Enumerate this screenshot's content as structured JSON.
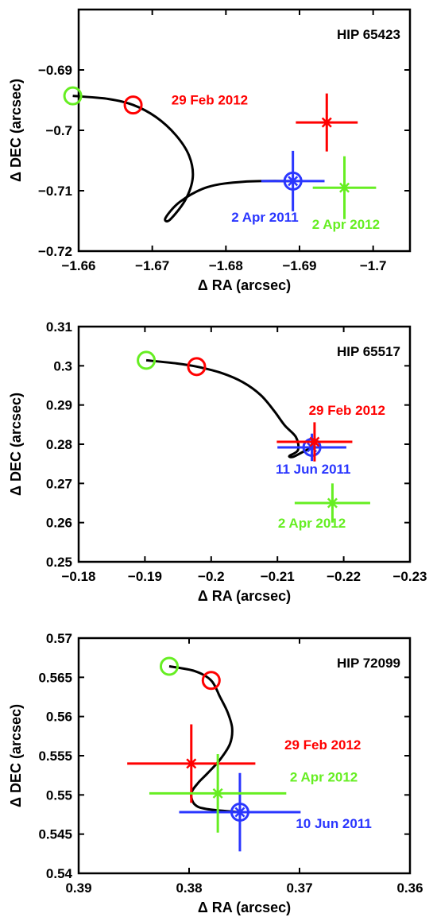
{
  "chart_data": [
    {
      "type": "scatter",
      "title": "HIP 65423",
      "xlabel": "Δ RA (arcsec)",
      "ylabel": "Δ DEC (arcsec)",
      "xlim": [
        -1.66,
        -1.705
      ],
      "ylim": [
        -0.72,
        -0.68
      ],
      "xticks": [
        -1.66,
        -1.67,
        -1.68,
        -1.69,
        -1.7
      ],
      "xtick_labels": [
        "−1.66",
        "−1.67",
        "−1.68",
        "−1.69",
        "−1.7"
      ],
      "yticks": [
        -0.72,
        -0.71,
        -0.7,
        -0.69
      ],
      "ytick_labels": [
        "−0.72",
        "−0.71",
        "−0.7",
        "−0.69"
      ],
      "grid": false,
      "colors": {
        "track": "#000000",
        "red": "#ff0000",
        "blue": "#2a36ff",
        "green": "#66ee22"
      },
      "track": [
        [
          -1.6592,
          -0.6943
        ],
        [
          -1.664,
          -0.6948
        ],
        [
          -1.6674,
          -0.6958
        ],
        [
          -1.6705,
          -0.6978
        ],
        [
          -1.6732,
          -0.7008
        ],
        [
          -1.675,
          -0.7042
        ],
        [
          -1.6755,
          -0.7078
        ],
        [
          -1.6745,
          -0.7115
        ],
        [
          -1.6724,
          -0.7148
        ],
        [
          -1.6718,
          -0.7145
        ],
        [
          -1.6738,
          -0.7118
        ],
        [
          -1.6775,
          -0.7094
        ],
        [
          -1.6825,
          -0.7085
        ],
        [
          -1.6891,
          -0.7084
        ]
      ],
      "model_circles": [
        {
          "color": "green",
          "x": -1.6592,
          "y": -0.6943
        },
        {
          "color": "red",
          "x": -1.6674,
          "y": -0.6958
        }
      ],
      "measurements": [
        {
          "color": "blue",
          "x": -1.6891,
          "y": -0.7084,
          "xerr": 0.0043,
          "yerr": 0.005,
          "marker": "circle-star",
          "label": "2 Apr 2011",
          "label_x": -1.6853,
          "label_y": -0.7151
        },
        {
          "color": "red",
          "x": -1.6937,
          "y": -0.6987,
          "xerr": 0.0042,
          "yerr": 0.0048,
          "marker": "star",
          "label": "29 Feb 2012",
          "label_x": -1.6778,
          "label_y": -0.6957
        },
        {
          "color": "green",
          "x": -1.6961,
          "y": -0.7095,
          "xerr": 0.0043,
          "yerr": 0.0052,
          "marker": "star",
          "label": "2 Apr 2012",
          "label_x": -1.6963,
          "label_y": -0.7163
        }
      ]
    },
    {
      "type": "scatter",
      "title": "HIP 65517",
      "xlabel": "Δ RA (arcsec)",
      "ylabel": "Δ DEC (arcsec)",
      "xlim": [
        -0.18,
        -0.23
      ],
      "ylim": [
        0.25,
        0.31
      ],
      "xticks": [
        -0.18,
        -0.19,
        -0.2,
        -0.21,
        -0.22,
        -0.23
      ],
      "xtick_labels": [
        "−0.18",
        "−0.19",
        "−0.2",
        "−0.21",
        "−0.22",
        "−0.23"
      ],
      "yticks": [
        0.25,
        0.26,
        0.27,
        0.28,
        0.29,
        0.3,
        0.31
      ],
      "ytick_labels": [
        "0.25",
        "0.26",
        "0.27",
        "0.28",
        "0.29",
        "0.3",
        "0.31"
      ],
      "grid": false,
      "colors": {
        "track": "#000000",
        "red": "#ff0000",
        "blue": "#2a36ff",
        "green": "#66ee22"
      },
      "track": [
        [
          -0.1902,
          0.3014
        ],
        [
          -0.1948,
          0.3006
        ],
        [
          -0.1978,
          0.2998
        ],
        [
          -0.2015,
          0.2982
        ],
        [
          -0.2048,
          0.2958
        ],
        [
          -0.2075,
          0.2925
        ],
        [
          -0.2095,
          0.2885
        ],
        [
          -0.2111,
          0.2848
        ],
        [
          -0.2128,
          0.2818
        ],
        [
          -0.2131,
          0.2785
        ],
        [
          -0.2118,
          0.277
        ],
        [
          -0.2124,
          0.2768
        ],
        [
          -0.2138,
          0.278
        ],
        [
          -0.2152,
          0.2792
        ]
      ],
      "model_circles": [
        {
          "color": "green",
          "x": -0.1902,
          "y": 0.3014
        },
        {
          "color": "red",
          "x": -0.1978,
          "y": 0.2998
        }
      ],
      "measurements": [
        {
          "color": "blue",
          "x": -0.2152,
          "y": 0.2792,
          "xerr": 0.0052,
          "yerr": 0.0035,
          "marker": "circle-star",
          "label": "11 Jun 2011",
          "label_x": -0.2154,
          "label_y": 0.2725
        },
        {
          "color": "red",
          "x": -0.2156,
          "y": 0.2806,
          "xerr": 0.0057,
          "yerr": 0.005,
          "marker": "star",
          "label": "29 Feb 2012",
          "label_x": -0.2205,
          "label_y": 0.2875
        },
        {
          "color": "green",
          "x": -0.2183,
          "y": 0.265,
          "xerr": 0.0057,
          "yerr": 0.005,
          "marker": "star",
          "label": "2 Apr 2012",
          "label_x": -0.2152,
          "label_y": 0.2587
        }
      ]
    },
    {
      "type": "scatter",
      "title": "HIP 72099",
      "xlabel": "Δ RA (arcsec)",
      "ylabel": "Δ DEC (arcsec)",
      "xlim": [
        0.39,
        0.36
      ],
      "ylim": [
        0.54,
        0.57
      ],
      "xticks": [
        0.39,
        0.38,
        0.37,
        0.36
      ],
      "xtick_labels": [
        "0.39",
        "0.38",
        "0.37",
        "0.36"
      ],
      "yticks": [
        0.54,
        0.545,
        0.55,
        0.555,
        0.56,
        0.565,
        0.57
      ],
      "ytick_labels": [
        "0.54",
        "0.545",
        "0.55",
        "0.555",
        "0.56",
        "0.565",
        "0.57"
      ],
      "grid": false,
      "colors": {
        "track": "#000000",
        "red": "#ff0000",
        "blue": "#2a36ff",
        "green": "#66ee22"
      },
      "track": [
        [
          0.3818,
          0.5664
        ],
        [
          0.3795,
          0.5658
        ],
        [
          0.378,
          0.5646
        ],
        [
          0.3772,
          0.5625
        ],
        [
          0.3765,
          0.5605
        ],
        [
          0.3761,
          0.5585
        ],
        [
          0.3763,
          0.5565
        ],
        [
          0.3772,
          0.5545
        ],
        [
          0.3783,
          0.5528
        ],
        [
          0.3792,
          0.5515
        ],
        [
          0.3798,
          0.5502
        ],
        [
          0.3795,
          0.5488
        ],
        [
          0.3784,
          0.5482
        ],
        [
          0.3754,
          0.5478
        ]
      ],
      "model_circles": [
        {
          "color": "green",
          "x": 0.3818,
          "y": 0.5664
        },
        {
          "color": "red",
          "x": 0.378,
          "y": 0.5646
        }
      ],
      "measurements": [
        {
          "color": "blue",
          "x": 0.3754,
          "y": 0.5478,
          "xerr": 0.0055,
          "yerr": 0.005,
          "marker": "circle-star",
          "label": "10 Jun 2011",
          "label_x": 0.3669,
          "label_y": 0.5458
        },
        {
          "color": "red",
          "x": 0.3798,
          "y": 0.554,
          "xerr": 0.0058,
          "yerr": 0.005,
          "marker": "star",
          "label": "29 Feb 2012",
          "label_x": 0.3679,
          "label_y": 0.5558
        },
        {
          "color": "green",
          "x": 0.3774,
          "y": 0.5502,
          "xerr": 0.0062,
          "yerr": 0.005,
          "marker": "star",
          "label": "2 Apr 2012",
          "label_x": 0.3678,
          "label_y": 0.5517
        }
      ]
    }
  ]
}
